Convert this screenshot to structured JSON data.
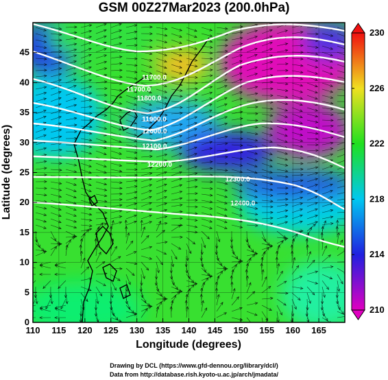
{
  "title": "GSM 00Z27Mar2023 (200.0hPa)",
  "chart_data": {
    "type": "heatmap",
    "title": "GSM 00Z27Mar2023 (200.0hPa)",
    "xlabel": "Longitude (degrees)",
    "ylabel": "Latitude (degrees)",
    "xlim": [
      110,
      170
    ],
    "ylim": [
      0,
      50
    ],
    "x_ticks": [
      "110",
      "115",
      "120",
      "125",
      "130",
      "135",
      "140",
      "145",
      "150",
      "155",
      "160",
      "165"
    ],
    "y_ticks": [
      "0",
      "5",
      "10",
      "15",
      "20",
      "25",
      "30",
      "35",
      "40",
      "45"
    ],
    "colorbar": {
      "min": 210,
      "max": 230,
      "ticks": [
        "210",
        "214",
        "218",
        "222",
        "226",
        "230"
      ],
      "colors": [
        "#e000c0",
        "#2020e0",
        "#00c8f0",
        "#20e020",
        "#f0e020",
        "#f01010"
      ]
    },
    "contour_labels": [
      {
        "text": "11700.0",
        "lon": 131,
        "lat": 40.5
      },
      {
        "text": "11800.0",
        "lon": 130,
        "lat": 37
      },
      {
        "text": "11700.0",
        "lon": 128,
        "lat": 38.5
      },
      {
        "text": "11900.0",
        "lon": 131,
        "lat": 33.5
      },
      {
        "text": "12000.0",
        "lon": 131,
        "lat": 31.5
      },
      {
        "text": "12100.0",
        "lon": 131,
        "lat": 29
      },
      {
        "text": "12200.0",
        "lon": 132,
        "lat": 26
      },
      {
        "text": "12300.0",
        "lon": 147,
        "lat": 23.5
      },
      {
        "text": "12400.0",
        "lon": 148,
        "lat": 19.5
      }
    ]
  },
  "credits": {
    "line1": "Drawing by DCL (https://www.gfd-dennou.org/library/dcl/)",
    "line2": "Data from http://database.rish.kyoto-u.ac.jp/arch/jmadata/"
  }
}
